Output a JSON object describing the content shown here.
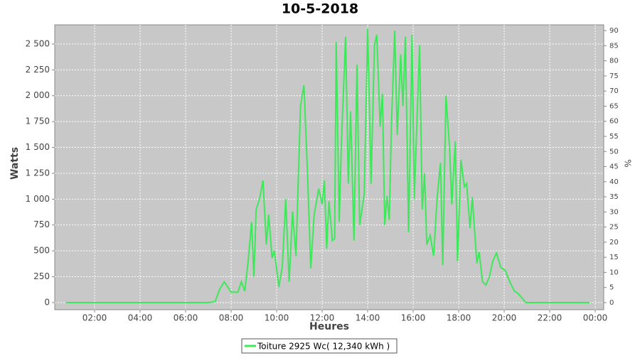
{
  "chart_data": {
    "type": "line",
    "title": "10-5-2018",
    "x_label": "Heures",
    "y_label": "Watts",
    "y2_label": "%",
    "xlim": [
      0.25,
      24.375
    ],
    "xticks": [
      {
        "value": 2,
        "label": "02:00"
      },
      {
        "value": 4,
        "label": "04:00"
      },
      {
        "value": 6,
        "label": "06:00"
      },
      {
        "value": 8,
        "label": "08:00"
      },
      {
        "value": 10,
        "label": "10:00"
      },
      {
        "value": 12,
        "label": "12:00"
      },
      {
        "value": 14,
        "label": "14:00"
      },
      {
        "value": 16,
        "label": "16:00"
      },
      {
        "value": 18,
        "label": "18:00"
      },
      {
        "value": 20,
        "label": "20:00"
      },
      {
        "value": 22,
        "label": "22:00"
      },
      {
        "value": 24,
        "label": "00:00"
      }
    ],
    "ylim": [
      -69,
      2685
    ],
    "yticks": [
      0,
      250,
      500,
      750,
      {
        "value": 1000,
        "label": "1 000"
      },
      {
        "value": 1250,
        "label": "1 250"
      },
      {
        "value": 1500,
        "label": "1 500"
      },
      {
        "value": 1750,
        "label": "1 750"
      },
      {
        "value": 2000,
        "label": "2 000"
      },
      {
        "value": 2250,
        "label": "2 250"
      },
      {
        "value": 2500,
        "label": "2 500"
      }
    ],
    "y2lim": [
      -2.35,
      91.9
    ],
    "y2ticks": [
      0,
      5,
      10,
      15,
      20,
      25,
      30,
      35,
      40,
      45,
      50,
      55,
      60,
      65,
      70,
      75,
      80,
      85,
      90
    ],
    "grid": true,
    "legend": "bottom",
    "x": [
      0.75,
      7.0,
      7.3,
      7.5,
      7.7,
      7.85,
      8.0,
      8.3,
      8.45,
      8.6,
      8.75,
      8.9,
      9.0,
      9.1,
      9.25,
      9.4,
      9.55,
      9.65,
      9.8,
      9.9,
      10.1,
      10.25,
      10.4,
      10.55,
      10.7,
      10.85,
      11.05,
      11.2,
      11.35,
      11.5,
      11.65,
      11.85,
      12.0,
      12.1,
      12.2,
      12.3,
      12.45,
      12.55,
      12.62,
      12.75,
      12.85,
      13.03,
      13.15,
      13.25,
      13.4,
      13.53,
      13.65,
      13.85,
      14.0,
      14.15,
      14.3,
      14.4,
      14.55,
      14.65,
      14.75,
      14.85,
      14.95,
      15.05,
      15.19,
      15.3,
      15.45,
      15.55,
      15.66,
      15.8,
      15.95,
      16.05,
      16.28,
      16.4,
      16.5,
      16.6,
      16.75,
      16.9,
      17.05,
      17.2,
      17.3,
      17.44,
      17.6,
      17.7,
      17.85,
      17.95,
      18.1,
      18.25,
      18.35,
      18.5,
      18.6,
      18.8,
      18.9,
      19.05,
      19.2,
      19.35,
      19.5,
      19.66,
      19.85,
      20.05,
      20.25,
      20.45,
      20.6,
      20.8,
      20.95,
      23.75
    ],
    "series": [
      {
        "name": "Toiture 2925 Wc( 12,340 kWh )",
        "color": "#3ee85a",
        "values": [
          0,
          0,
          10,
          130,
          200,
          150,
          100,
          100,
          200,
          110,
          400,
          780,
          250,
          900,
          1000,
          1180,
          560,
          850,
          430,
          500,
          150,
          350,
          1000,
          200,
          880,
          450,
          1900,
          2100,
          1300,
          330,
          850,
          1100,
          950,
          1180,
          520,
          980,
          600,
          620,
          2520,
          780,
          1560,
          2570,
          1150,
          1850,
          600,
          2300,
          750,
          1050,
          2650,
          1150,
          2490,
          2590,
          1700,
          2020,
          750,
          1030,
          800,
          1750,
          2630,
          1620,
          2400,
          1900,
          2570,
          680,
          2590,
          1000,
          2490,
          900,
          1250,
          560,
          650,
          450,
          1000,
          1350,
          360,
          2000,
          1500,
          950,
          1560,
          400,
          1380,
          1120,
          1150,
          720,
          1020,
          380,
          490,
          200,
          170,
          250,
          400,
          480,
          340,
          310,
          200,
          110,
          90,
          40,
          0,
          0
        ]
      }
    ]
  }
}
